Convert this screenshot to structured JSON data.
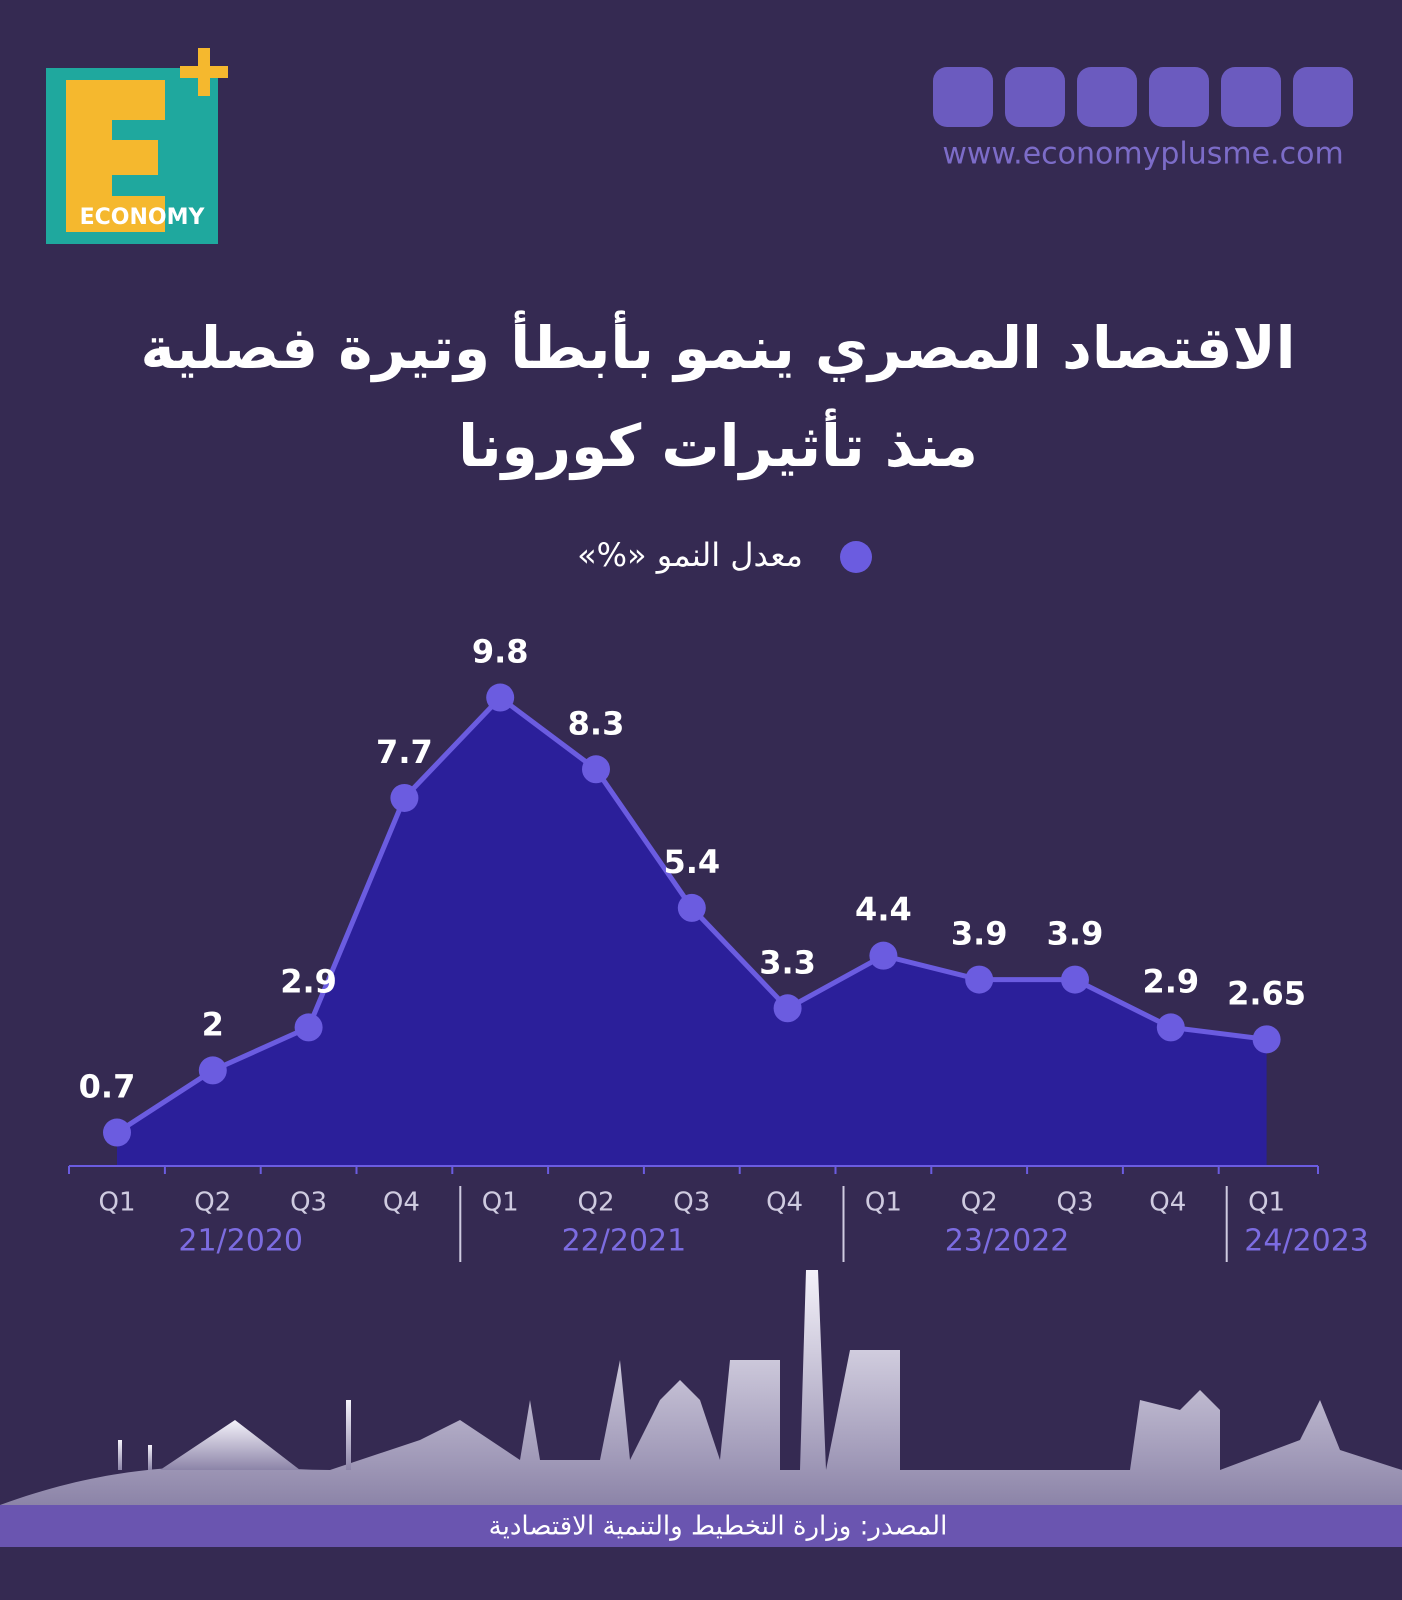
{
  "brand": {
    "logo_text": "ECONOMY",
    "url": "www.economyplusme.com"
  },
  "chart_data": {
    "type": "line",
    "title_lines": [
      "الاقتصاد المصري ينمو بأبطأ وتيرة فصلية",
      "منذ تأثيرات كورونا"
    ],
    "legend": "معدل النمو «%»",
    "categories": [
      "Q1",
      "Q2",
      "Q3",
      "Q4",
      "Q1",
      "Q2",
      "Q3",
      "Q4",
      "Q1",
      "Q2",
      "Q3",
      "Q4",
      "Q1"
    ],
    "category_groups": [
      "21/2020",
      "22/2021",
      "23/2022",
      "24/2023"
    ],
    "values": [
      0.7,
      2,
      2.9,
      7.7,
      9.8,
      8.3,
      5.4,
      3.3,
      4.4,
      3.9,
      3.9,
      2.9,
      2.65
    ],
    "color": "#6b5ce0",
    "area_color": "#2b1f9a",
    "ylim": [
      0,
      10
    ]
  },
  "footer": {
    "source": "المصدر: وزارة التخطيط والتنمية الاقتصادية"
  }
}
